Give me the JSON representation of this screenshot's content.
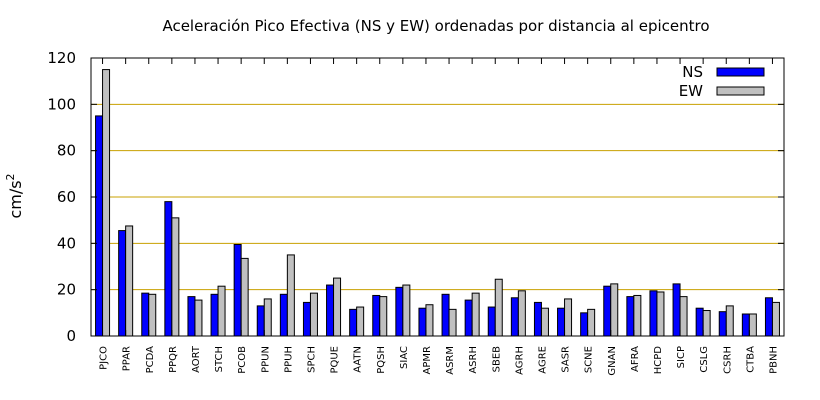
{
  "chart_data": {
    "type": "bar",
    "title": "Aceleración Pico Efectiva (NS y EW) ordenadas por distancia al epicentro",
    "ylabel_base": "cm/s",
    "ylabel_exp": "2",
    "xlabel": "",
    "ylim": [
      0,
      120
    ],
    "yticks": [
      0,
      20,
      40,
      60,
      80,
      100,
      120
    ],
    "grid": true,
    "legend_position": "top-right",
    "categories": [
      "PJCO",
      "PPAR",
      "PCDA",
      "PPQR",
      "AORT",
      "STCH",
      "PCOB",
      "PPUN",
      "PPUH",
      "SPCH",
      "PQUE",
      "AATN",
      "PQSH",
      "SIAC",
      "APMR",
      "ASRM",
      "ASRH",
      "SBEB",
      "AGRH",
      "AGRE",
      "SASR",
      "SCNE",
      "GNAN",
      "AFRA",
      "HCPD",
      "SICP",
      "CSLG",
      "CSRH",
      "CTBA",
      "PBNH"
    ],
    "series": [
      {
        "name": "NS",
        "color": "#0000ff",
        "values": [
          95,
          45.5,
          18.5,
          58,
          17,
          18,
          39.5,
          13,
          18,
          14.5,
          22,
          11.5,
          17.5,
          21,
          12,
          18,
          15.5,
          12.5,
          16.5,
          14.5,
          12,
          10,
          21.5,
          17,
          19.5,
          22.5,
          12,
          10.5,
          9.5,
          16.5
        ]
      },
      {
        "name": "EW",
        "color": "#c0c0c0",
        "values": [
          115,
          47.5,
          18,
          51,
          15.5,
          21.5,
          33.5,
          16,
          35,
          18.5,
          25,
          12.5,
          17,
          22,
          13.5,
          11.5,
          18.5,
          24.5,
          19.5,
          12,
          16,
          11.5,
          22.5,
          17.5,
          19,
          17,
          11,
          13,
          9.5,
          14.5
        ]
      }
    ]
  }
}
